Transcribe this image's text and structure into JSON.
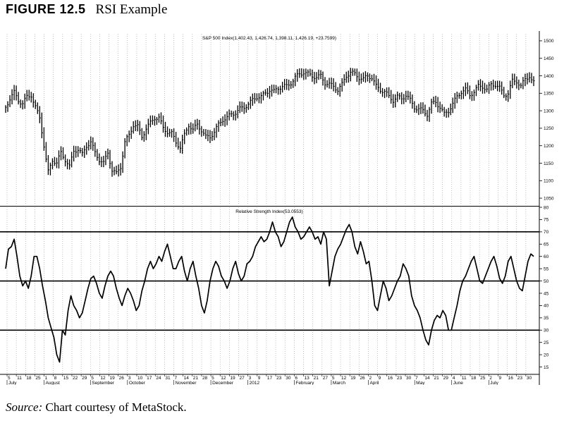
{
  "figure": {
    "number": "FIGURE 12.5",
    "name": "RSI Example"
  },
  "source": {
    "label": "Source:",
    "text": "Chart courtesy of MetaStock."
  },
  "chart_data": [
    {
      "type": "bar",
      "title": "S&P 500 Index(1,402.43, 1,426.74, 1,398.11, 1,426.19, +23.7599)",
      "ylim": [
        1030,
        1520
      ],
      "y_ticks": [
        1050,
        1100,
        1150,
        1200,
        1250,
        1300,
        1350,
        1400,
        1450,
        1500
      ],
      "grid": "vertical dotted lines at dates",
      "series": [
        {
          "x": [
            0,
            6,
            12,
            18,
            24,
            30,
            36,
            40,
            44,
            48,
            52,
            56,
            60,
            66,
            72,
            78,
            84,
            90,
            96,
            102,
            108,
            114,
            120,
            126,
            132,
            138,
            144,
            150,
            156,
            162,
            168,
            174,
            180,
            186,
            192,
            198,
            204,
            210,
            216,
            222,
            228,
            234,
            240,
            246,
            252,
            258,
            264,
            270,
            276,
            282,
            288,
            294,
            300,
            306,
            312,
            318,
            324,
            330,
            336,
            342,
            348,
            354,
            360,
            366,
            372,
            378,
            384,
            390,
            396,
            402,
            408,
            414,
            420,
            426,
            432,
            438,
            444,
            450,
            456,
            462,
            468,
            474,
            480,
            486,
            492,
            498,
            504,
            510,
            516,
            522,
            528,
            534,
            540,
            546,
            552,
            558,
            564,
            570,
            576,
            582,
            588,
            594,
            600,
            606,
            612,
            618,
            624,
            630,
            636,
            642,
            648,
            654,
            660,
            666,
            672,
            678,
            684,
            690,
            696,
            702,
            708,
            714,
            720,
            726,
            732,
            738,
            743
          ],
          "values": [
            1310,
            1335,
            1352,
            1330,
            1320,
            1340,
            1345,
            1320,
            1300,
            1280,
            1230,
            1170,
            1125,
            1160,
            1150,
            1180,
            1160,
            1140,
            1185,
            1190,
            1175,
            1200,
            1210,
            1180,
            1160,
            1150,
            1180,
            1130,
            1120,
            1140,
            1210,
            1230,
            1260,
            1255,
            1225,
            1250,
            1265,
            1280,
            1280,
            1250,
            1240,
            1235,
            1210,
            1195,
            1230,
            1260,
            1245,
            1260,
            1245,
            1225,
            1225,
            1240,
            1260,
            1275,
            1280,
            1290,
            1295,
            1305,
            1310,
            1320,
            1330,
            1340,
            1340,
            1350,
            1360,
            1355,
            1365,
            1370,
            1370,
            1380,
            1395,
            1405,
            1410,
            1405,
            1400,
            1395,
            1400,
            1380,
            1375,
            1370,
            1360,
            1375,
            1400,
            1410,
            1405,
            1395,
            1390,
            1400,
            1395,
            1370,
            1360,
            1355,
            1340,
            1330,
            1340,
            1335,
            1345,
            1330,
            1310,
            1305,
            1300,
            1290,
            1320,
            1325,
            1310,
            1290,
            1300,
            1320,
            1340,
            1355,
            1360,
            1345,
            1355,
            1370,
            1370,
            1360,
            1375,
            1375,
            1365,
            1345,
            1350,
            1385,
            1385,
            1370,
            1390,
            1400,
            1380
          ]
        }
      ]
    },
    {
      "type": "line",
      "title": "Relative Strength Index(53.0553)",
      "ylim": [
        12,
        80
      ],
      "y_ticks": [
        15,
        20,
        25,
        30,
        35,
        40,
        45,
        50,
        55,
        60,
        65,
        70,
        75,
        80
      ],
      "reference_lines": [
        70,
        50,
        30
      ],
      "series": [
        {
          "x": [
            0,
            4,
            8,
            12,
            16,
            20,
            24,
            28,
            32,
            36,
            40,
            44,
            48,
            52,
            56,
            60,
            64,
            68,
            72,
            76,
            80,
            84,
            88,
            92,
            96,
            100,
            104,
            108,
            112,
            116,
            120,
            124,
            128,
            132,
            136,
            140,
            144,
            148,
            152,
            156,
            160,
            164,
            168,
            172,
            176,
            180,
            184,
            188,
            192,
            196,
            200,
            204,
            208,
            212,
            216,
            220,
            224,
            228,
            232,
            236,
            240,
            244,
            248,
            252,
            256,
            260,
            264,
            268,
            272,
            276,
            280,
            284,
            288,
            292,
            296,
            300,
            304,
            308,
            312,
            316,
            320,
            324,
            328,
            332,
            336,
            340,
            344,
            348,
            352,
            356,
            360,
            364,
            368,
            372,
            376,
            380,
            384,
            388,
            392,
            396,
            400,
            404,
            408,
            412,
            416,
            420,
            424,
            428,
            432,
            436,
            440,
            444,
            448,
            452,
            456,
            460,
            464,
            468,
            472,
            476,
            480,
            484,
            488,
            492,
            496,
            500,
            504,
            508,
            512,
            516,
            520,
            524,
            528,
            532,
            536,
            540,
            544,
            548,
            552,
            556,
            560,
            564,
            568,
            572,
            576,
            580,
            584,
            588,
            592,
            596,
            600,
            604,
            608,
            612,
            616,
            620,
            624,
            628,
            632,
            636,
            640,
            644,
            648,
            652,
            656,
            660,
            664,
            668,
            672,
            676,
            680,
            684,
            688,
            692,
            696,
            700,
            704,
            708,
            712,
            716,
            720,
            724,
            728,
            732,
            736,
            740,
            744
          ],
          "values": [
            55,
            63,
            64,
            67,
            60,
            52,
            48,
            50,
            47,
            52,
            60,
            60,
            55,
            48,
            42,
            35,
            31,
            27,
            20,
            17,
            30,
            28,
            38,
            44,
            40,
            38,
            35,
            37,
            42,
            47,
            51,
            52,
            49,
            45,
            43,
            48,
            52,
            54,
            52,
            47,
            43,
            40,
            44,
            47,
            45,
            42,
            38,
            40,
            46,
            50,
            55,
            58,
            55,
            57,
            60,
            58,
            62,
            65,
            60,
            55,
            55,
            58,
            60,
            54,
            50,
            55,
            58,
            52,
            47,
            40,
            37,
            42,
            50,
            55,
            58,
            56,
            52,
            50,
            47,
            50,
            55,
            58,
            53,
            50,
            52,
            57,
            58,
            60,
            64,
            66,
            68,
            66,
            67,
            70,
            74,
            70,
            68,
            64,
            66,
            70,
            74,
            76,
            72,
            70,
            67,
            68,
            70,
            72,
            70,
            67,
            68,
            65,
            70,
            67,
            48,
            54,
            60,
            63,
            65,
            68,
            71,
            73,
            70,
            64,
            61,
            66,
            62,
            57,
            58,
            50,
            40,
            38,
            44,
            50,
            47,
            42,
            44,
            47,
            50,
            52,
            57,
            55,
            52,
            44,
            40,
            38,
            35,
            30,
            26,
            24,
            30,
            34,
            36,
            35,
            38,
            36,
            30,
            30,
            35,
            40,
            46,
            50,
            52,
            55,
            58,
            60,
            55,
            50,
            49,
            52,
            55,
            58,
            60,
            56,
            51,
            49,
            52,
            58,
            60,
            55,
            50,
            47,
            46,
            52,
            58,
            61,
            60
          ]
        }
      ]
    }
  ],
  "x_axis": {
    "date_labels": [
      "5",
      "11",
      "18",
      "25",
      "1",
      "8",
      "15",
      "22",
      "29",
      "5",
      "12",
      "19",
      "26",
      "3",
      "10",
      "17",
      "24",
      "31",
      "7",
      "14",
      "21",
      "28",
      "5",
      "12",
      "19",
      "27",
      "3",
      "9",
      "17",
      "23",
      "30",
      "6",
      "13",
      "21",
      "27",
      "5",
      "12",
      "19",
      "26",
      "2",
      "9",
      "16",
      "23",
      "30",
      "7",
      "14",
      "21",
      "29",
      "4",
      "11",
      "18",
      "25",
      "2",
      "9",
      "16",
      "23",
      "30"
    ],
    "month_labels": [
      "July",
      "August",
      "September",
      "October",
      "November",
      "December",
      "2012",
      "February",
      "March",
      "April",
      "May",
      "June",
      "July"
    ]
  }
}
